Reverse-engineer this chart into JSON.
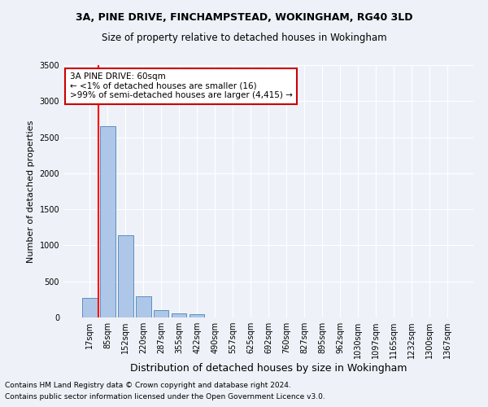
{
  "title_line1": "3A, PINE DRIVE, FINCHAMPSTEAD, WOKINGHAM, RG40 3LD",
  "title_line2": "Size of property relative to detached houses in Wokingham",
  "xlabel": "Distribution of detached houses by size in Wokingham",
  "ylabel": "Number of detached properties",
  "footnote1": "Contains HM Land Registry data © Crown copyright and database right 2024.",
  "footnote2": "Contains public sector information licensed under the Open Government Licence v3.0.",
  "bar_labels": [
    "17sqm",
    "85sqm",
    "152sqm",
    "220sqm",
    "287sqm",
    "355sqm",
    "422sqm",
    "490sqm",
    "557sqm",
    "625sqm",
    "692sqm",
    "760sqm",
    "827sqm",
    "895sqm",
    "962sqm",
    "1030sqm",
    "1097sqm",
    "1165sqm",
    "1232sqm",
    "1300sqm",
    "1367sqm"
  ],
  "bar_values": [
    270,
    2650,
    1140,
    290,
    100,
    60,
    40,
    0,
    0,
    0,
    0,
    0,
    0,
    0,
    0,
    0,
    0,
    0,
    0,
    0,
    0
  ],
  "bar_color": "#aec6e8",
  "bar_edge_color": "#5a8fc0",
  "ylim": [
    0,
    3500
  ],
  "yticks": [
    0,
    500,
    1000,
    1500,
    2000,
    2500,
    3000,
    3500
  ],
  "annotation_text_line1": "3A PINE DRIVE: 60sqm",
  "annotation_text_line2": "← <1% of detached houses are smaller (16)",
  "annotation_text_line3": ">99% of semi-detached houses are larger (4,415) →",
  "red_line_x": 0.5,
  "bg_color": "#eef2f8",
  "grid_color": "#ffffff",
  "annotation_box_color": "#ffffff",
  "annotation_box_edge_color": "#cc0000"
}
